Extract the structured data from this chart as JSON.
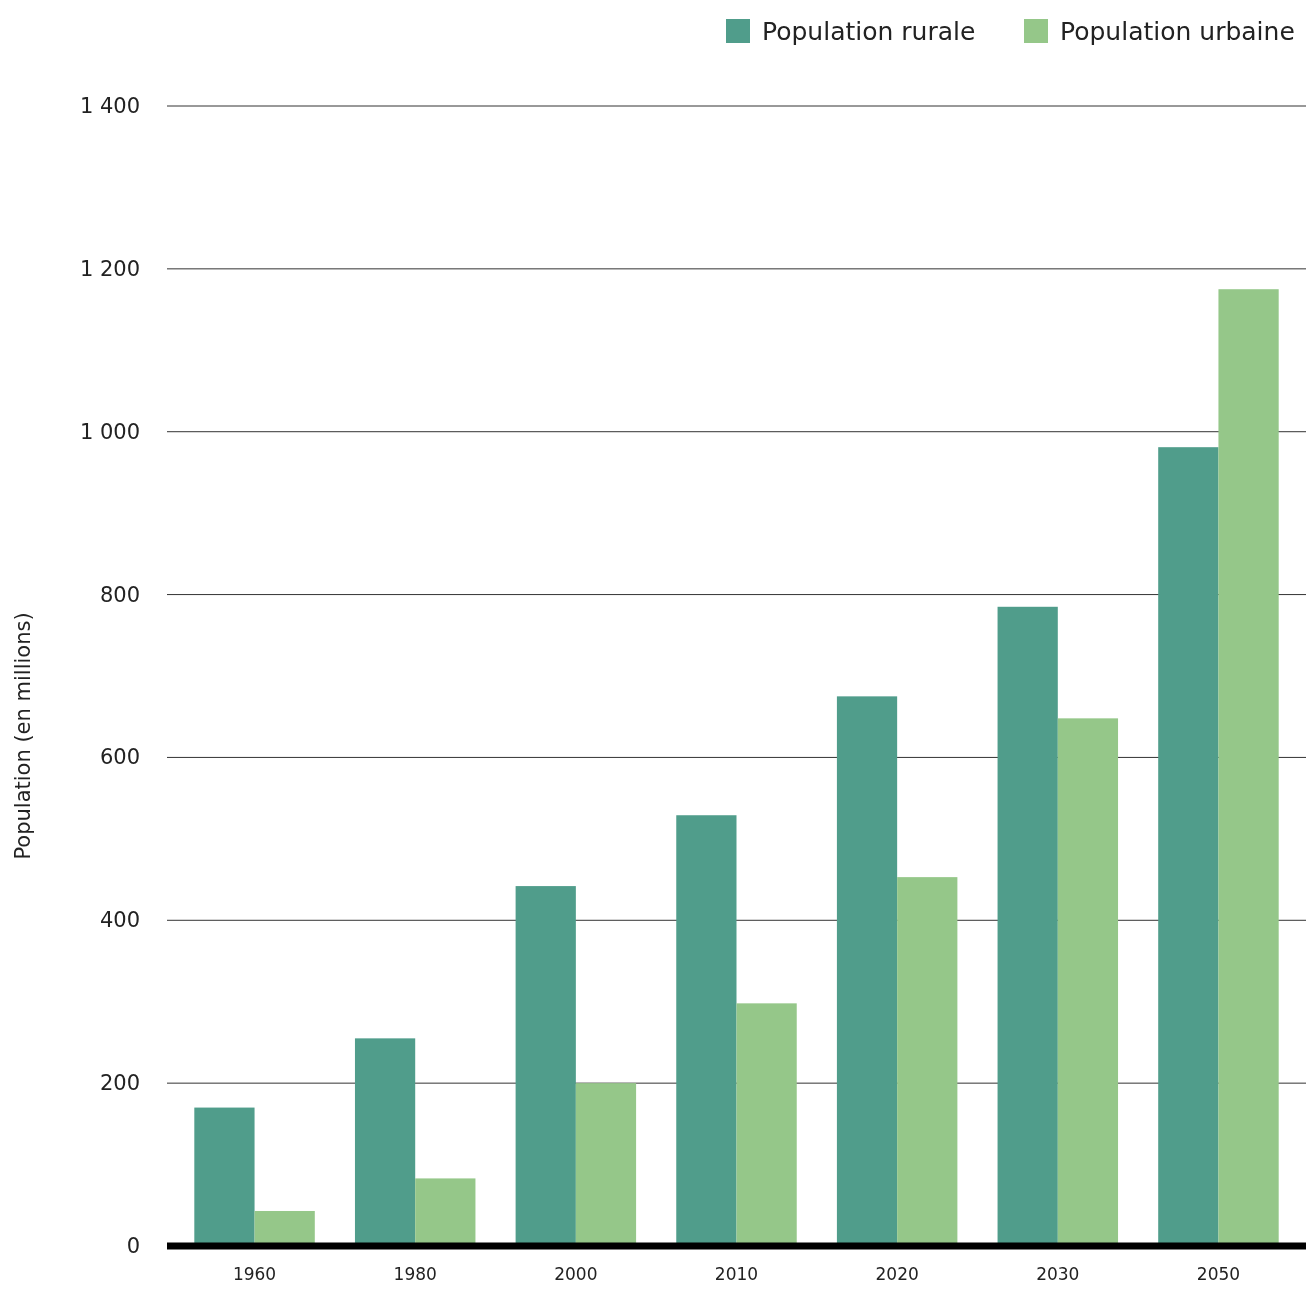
{
  "chart_data": {
    "type": "bar",
    "ylabel": "Population (en millions)",
    "categories": [
      "1960",
      "1980",
      "2000",
      "2010",
      "2020",
      "2030",
      "2050"
    ],
    "series": [
      {
        "name": "Population rurale",
        "color": "#509d8b",
        "values": [
          170,
          255,
          442,
          529,
          675,
          785,
          981
        ]
      },
      {
        "name": "Population urbaine",
        "color": "#95c789",
        "values": [
          43,
          83,
          200,
          298,
          453,
          648,
          1175
        ]
      }
    ],
    "ylim": [
      0,
      1400
    ],
    "yticks": [
      0,
      200,
      400,
      600,
      800,
      {
        "value": 1000,
        "label": "1 000"
      },
      {
        "value": 1200,
        "label": "1 200"
      },
      {
        "value": 1400,
        "label": "1 400"
      }
    ],
    "grid": "y",
    "legend": "top right"
  }
}
